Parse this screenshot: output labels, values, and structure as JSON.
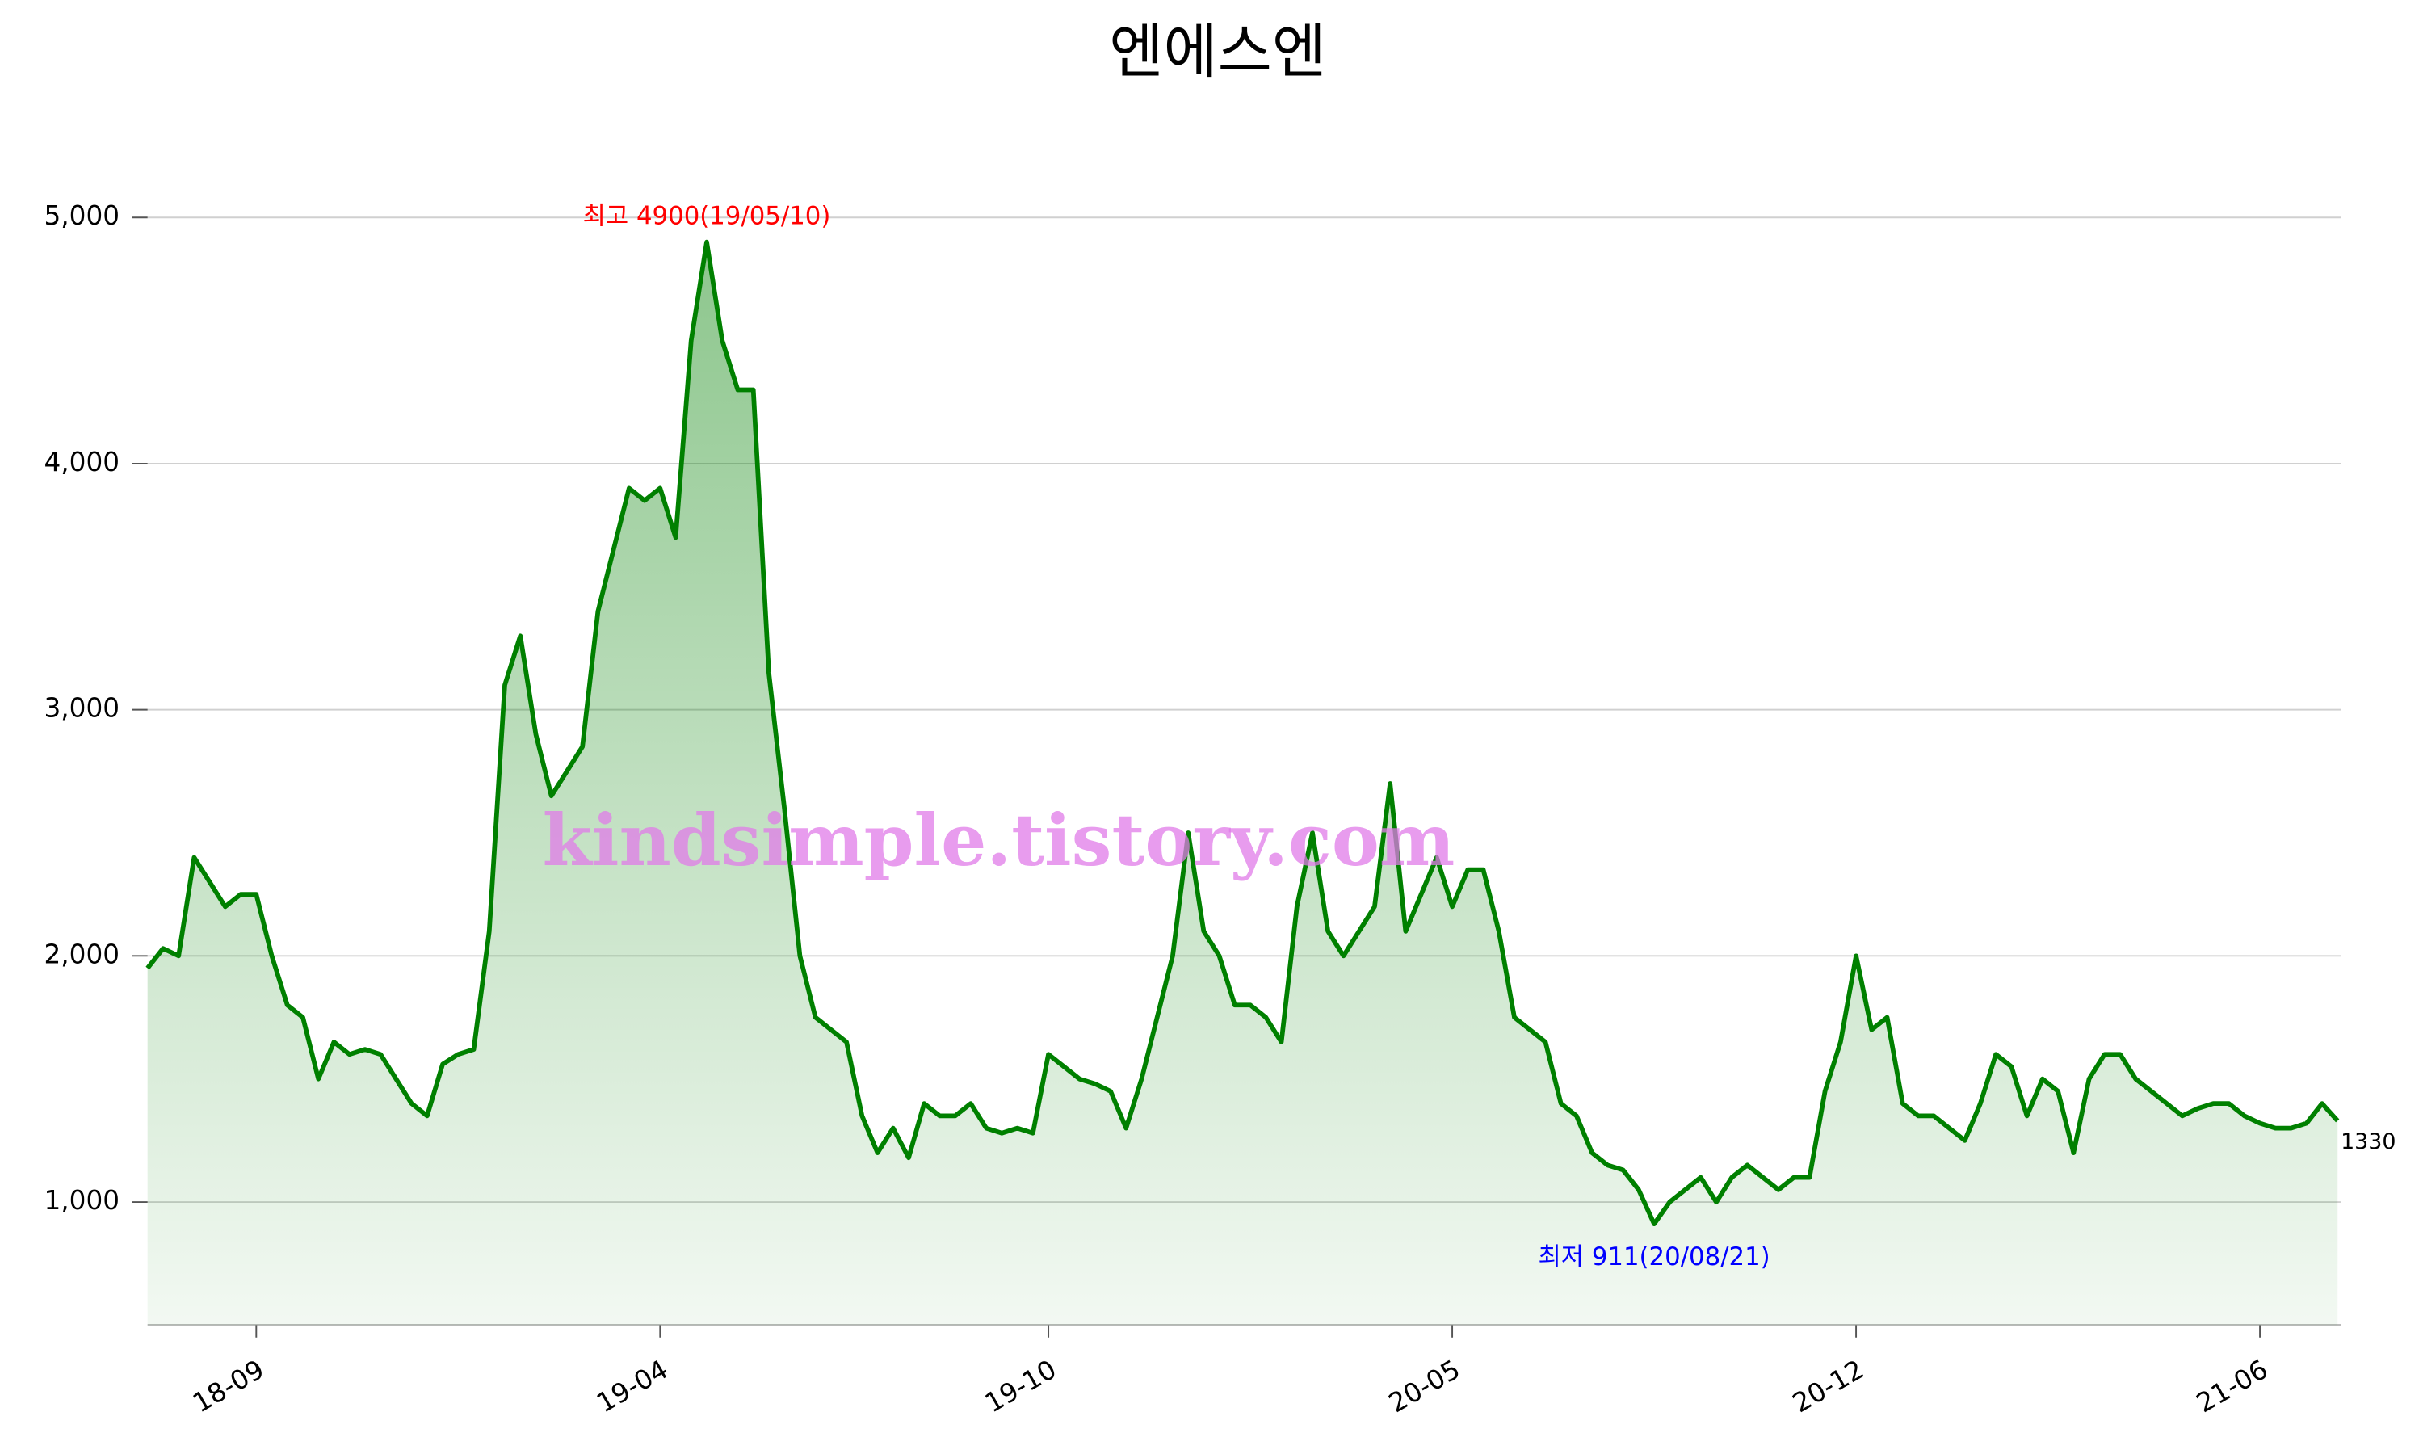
{
  "chart_data": {
    "type": "line",
    "title": "엔에스엔",
    "categories": [
      null,
      null,
      null,
      null,
      null,
      null,
      null,
      "18-09",
      null,
      null,
      null,
      null,
      null,
      null,
      null,
      null,
      null,
      null,
      null,
      null,
      null,
      null,
      null,
      null,
      null,
      null,
      null,
      null,
      null,
      null,
      null,
      null,
      null,
      "19-04",
      null,
      null,
      null,
      null,
      null,
      null,
      null,
      null,
      null,
      null,
      null,
      null,
      null,
      null,
      null,
      null,
      null,
      null,
      null,
      null,
      null,
      null,
      null,
      null,
      "19-10",
      null,
      null,
      null,
      null,
      null,
      null,
      null,
      null,
      null,
      null,
      null,
      null,
      null,
      null,
      null,
      null,
      null,
      null,
      null,
      null,
      null,
      null,
      null,
      null,
      null,
      "20-05",
      null,
      null,
      null,
      null,
      null,
      null,
      null,
      null,
      null,
      null,
      null,
      null,
      null,
      null,
      null,
      null,
      null,
      null,
      null,
      null,
      null,
      null,
      null,
      null,
      null,
      "20-12",
      null,
      null,
      null,
      null,
      null,
      null,
      null,
      null,
      null,
      null,
      null,
      null,
      null,
      null,
      null,
      null,
      null,
      null,
      null,
      null,
      null,
      null,
      null,
      null,
      null,
      "21-06",
      null,
      null,
      null,
      null,
      null
    ],
    "series": [
      {
        "color": "#008000",
        "values": [
          1950,
          2030,
          2000,
          2400,
          2300,
          2200,
          2250,
          2250,
          2000,
          1800,
          1750,
          1500,
          1650,
          1600,
          1620,
          1600,
          1500,
          1400,
          1350,
          1560,
          1600,
          1620,
          2100,
          3100,
          3300,
          2900,
          2650,
          2750,
          2850,
          3400,
          3650,
          3900,
          3850,
          3900,
          3700,
          4500,
          4900,
          4500,
          4300,
          4300,
          3150,
          2600,
          2000,
          1750,
          1700,
          1650,
          1350,
          1200,
          1300,
          1180,
          1400,
          1350,
          1350,
          1400,
          1300,
          1280,
          1300,
          1280,
          1600,
          1550,
          1500,
          1480,
          1450,
          1300,
          1500,
          1750,
          2000,
          2500,
          2100,
          2000,
          1800,
          1800,
          1750,
          1650,
          2200,
          2500,
          2100,
          2000,
          2100,
          2200,
          2700,
          2100,
          2250,
          2400,
          2200,
          2350,
          2350,
          2100,
          1750,
          1700,
          1650,
          1400,
          1350,
          1200,
          1150,
          1130,
          1050,
          911,
          1000,
          1050,
          1100,
          1000,
          1100,
          1150,
          1100,
          1050,
          1100,
          1100,
          1450,
          1650,
          2000,
          1700,
          1750,
          1400,
          1350,
          1350,
          1300,
          1250,
          1400,
          1600,
          1550,
          1350,
          1500,
          1450,
          1200,
          1500,
          1600,
          1600,
          1500,
          1450,
          1400,
          1350,
          1380,
          1400,
          1400,
          1350,
          1320,
          1300,
          1300,
          1320,
          1400,
          1330
        ],
        "value_labels": [
          null,
          null,
          null,
          null,
          null,
          null,
          null,
          null,
          null,
          null,
          null,
          null,
          null,
          null,
          null,
          null,
          null,
          null,
          null,
          null,
          null,
          null,
          null,
          null,
          null,
          null,
          null,
          null,
          null,
          null,
          null,
          null,
          null,
          null,
          null,
          null,
          null,
          null,
          null,
          null,
          null,
          null,
          null,
          null,
          null,
          null,
          null,
          null,
          null,
          null,
          null,
          null,
          null,
          null,
          null,
          null,
          null,
          null,
          null,
          null,
          null,
          null,
          null,
          null,
          null,
          null,
          null,
          null,
          null,
          null,
          null,
          null,
          null,
          null,
          null,
          null,
          null,
          null,
          null,
          null,
          null,
          null,
          null,
          null,
          null,
          null,
          null,
          null,
          null,
          null,
          null,
          null,
          null,
          null,
          null,
          null,
          null,
          null,
          null,
          null,
          null,
          null,
          null,
          null,
          null,
          null,
          null,
          null,
          null,
          null,
          null,
          null,
          null,
          null,
          null,
          null,
          null,
          null,
          null,
          null,
          null,
          null,
          null,
          null,
          null,
          null,
          null,
          null,
          null,
          null,
          null,
          null,
          null,
          null,
          null,
          null,
          null,
          null,
          null,
          null,
          null,
          "1330"
        ]
      }
    ],
    "annotations": [
      {
        "text": "최고 4900(19/05/10)",
        "color": "#ff0000"
      },
      {
        "text": "최저 911(20/08/21)",
        "color": "#0000ff"
      }
    ],
    "watermark": "kindsimple.tistory.com",
    "ylim": [
      500,
      5000
    ],
    "yticks": [
      {
        "value": 1000,
        "label": "1,000"
      },
      {
        "value": 2000,
        "label": "2,000"
      },
      {
        "value": 3000,
        "label": "3,000"
      },
      {
        "value": 4000,
        "label": "4,000"
      },
      {
        "value": 5000,
        "label": "5,000"
      }
    ],
    "grid": true
  }
}
